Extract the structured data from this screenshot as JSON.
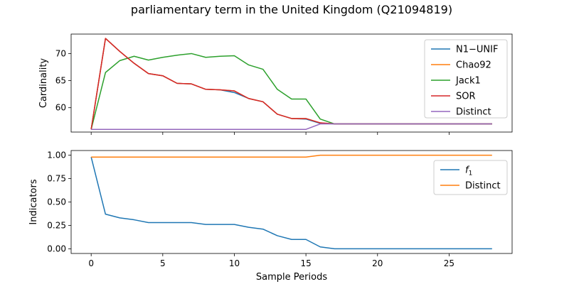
{
  "figure": {
    "title": "parliamentary term in the United Kingdom (Q21094819)"
  },
  "chart_data": [
    {
      "type": "line",
      "ylabel": "Cardinality",
      "xlabel": "",
      "xlim": [
        -1.4,
        29.4
      ],
      "ylim": [
        55.5,
        73.6
      ],
      "xticks": [
        0,
        5,
        10,
        15,
        20,
        25
      ],
      "yticks": [
        60,
        65,
        70
      ],
      "ytick_labels": [
        "60",
        "65",
        "70"
      ],
      "legend_position": "top-right",
      "x": [
        0,
        1,
        2,
        3,
        4,
        5,
        6,
        7,
        8,
        9,
        10,
        11,
        12,
        13,
        14,
        15,
        16,
        17,
        18,
        19,
        20,
        21,
        22,
        23,
        24,
        25,
        26,
        27,
        28
      ],
      "series": [
        {
          "name": "N1−UNIF",
          "color": "#1f77b4",
          "values": [
            56,
            72.8,
            70.4,
            68.2,
            66.3,
            65.9,
            64.5,
            64.4,
            63.4,
            63.3,
            62.8,
            61.7,
            61.1,
            58.8,
            58,
            57.9,
            57.1,
            57,
            57,
            57,
            57,
            57,
            57,
            57,
            57,
            57,
            57,
            57,
            57
          ]
        },
        {
          "name": "Chao92",
          "color": "#ff7f0e",
          "values": [
            56,
            72.8,
            70.4,
            68.2,
            66.3,
            65.9,
            64.5,
            64.4,
            63.4,
            63.3,
            63.1,
            61.7,
            61.1,
            58.8,
            58,
            58,
            57.2,
            57,
            57,
            57,
            57,
            57,
            57,
            57,
            57,
            57,
            57,
            57,
            57
          ]
        },
        {
          "name": "Jack1",
          "color": "#2ca02c",
          "values": [
            56,
            66.5,
            68.7,
            69.5,
            68.8,
            69.3,
            69.7,
            70,
            69.3,
            69.5,
            69.6,
            67.9,
            67.1,
            63.4,
            61.6,
            61.6,
            57.9,
            57,
            57,
            57,
            57,
            57,
            57,
            57,
            57,
            57,
            57,
            57,
            57
          ]
        },
        {
          "name": "SOR",
          "color": "#d62728",
          "values": [
            56,
            72.8,
            70.4,
            68.2,
            66.3,
            65.9,
            64.5,
            64.4,
            63.4,
            63.3,
            63.1,
            61.7,
            61.1,
            58.8,
            58,
            58,
            57.2,
            57,
            57,
            57,
            57,
            57,
            57,
            57,
            57,
            57,
            57,
            57,
            57
          ]
        },
        {
          "name": "Distinct",
          "color": "#9467bd",
          "values": [
            56,
            56,
            56,
            56,
            56,
            56,
            56,
            56,
            56,
            56,
            56,
            56,
            56,
            56,
            56,
            56,
            57,
            57,
            57,
            57,
            57,
            57,
            57,
            57,
            57,
            57,
            57,
            57,
            57
          ]
        }
      ]
    },
    {
      "type": "line",
      "ylabel": "Indicators",
      "xlabel": "Sample Periods",
      "xlim": [
        -1.4,
        29.4
      ],
      "ylim": [
        -0.05,
        1.05
      ],
      "xticks": [
        0,
        5,
        10,
        15,
        20,
        25
      ],
      "xtick_labels": [
        "0",
        "5",
        "10",
        "15",
        "20",
        "25"
      ],
      "yticks": [
        0,
        0.25,
        0.5,
        0.75,
        1.0
      ],
      "ytick_labels": [
        "0.00",
        "0.25",
        "0.50",
        "0.75",
        "1.00"
      ],
      "legend_position": "top-right",
      "x": [
        0,
        1,
        2,
        3,
        4,
        5,
        6,
        7,
        8,
        9,
        10,
        11,
        12,
        13,
        14,
        15,
        16,
        17,
        18,
        19,
        20,
        21,
        22,
        23,
        24,
        25,
        26,
        27,
        28
      ],
      "series": [
        {
          "name": "f",
          "name_subscript": "1",
          "color": "#1f77b4",
          "values": [
            0.98,
            0.37,
            0.33,
            0.31,
            0.28,
            0.28,
            0.28,
            0.28,
            0.26,
            0.26,
            0.26,
            0.23,
            0.21,
            0.14,
            0.1,
            0.1,
            0.02,
            0,
            0,
            0,
            0,
            0,
            0,
            0,
            0,
            0,
            0,
            0,
            0
          ]
        },
        {
          "name": "Distinct",
          "color": "#ff7f0e",
          "values": [
            0.98,
            0.98,
            0.98,
            0.98,
            0.98,
            0.98,
            0.98,
            0.98,
            0.98,
            0.98,
            0.98,
            0.98,
            0.98,
            0.98,
            0.98,
            0.98,
            1.0,
            1.0,
            1.0,
            1.0,
            1.0,
            1.0,
            1.0,
            1.0,
            1.0,
            1.0,
            1.0,
            1.0,
            1.0
          ]
        }
      ]
    }
  ]
}
